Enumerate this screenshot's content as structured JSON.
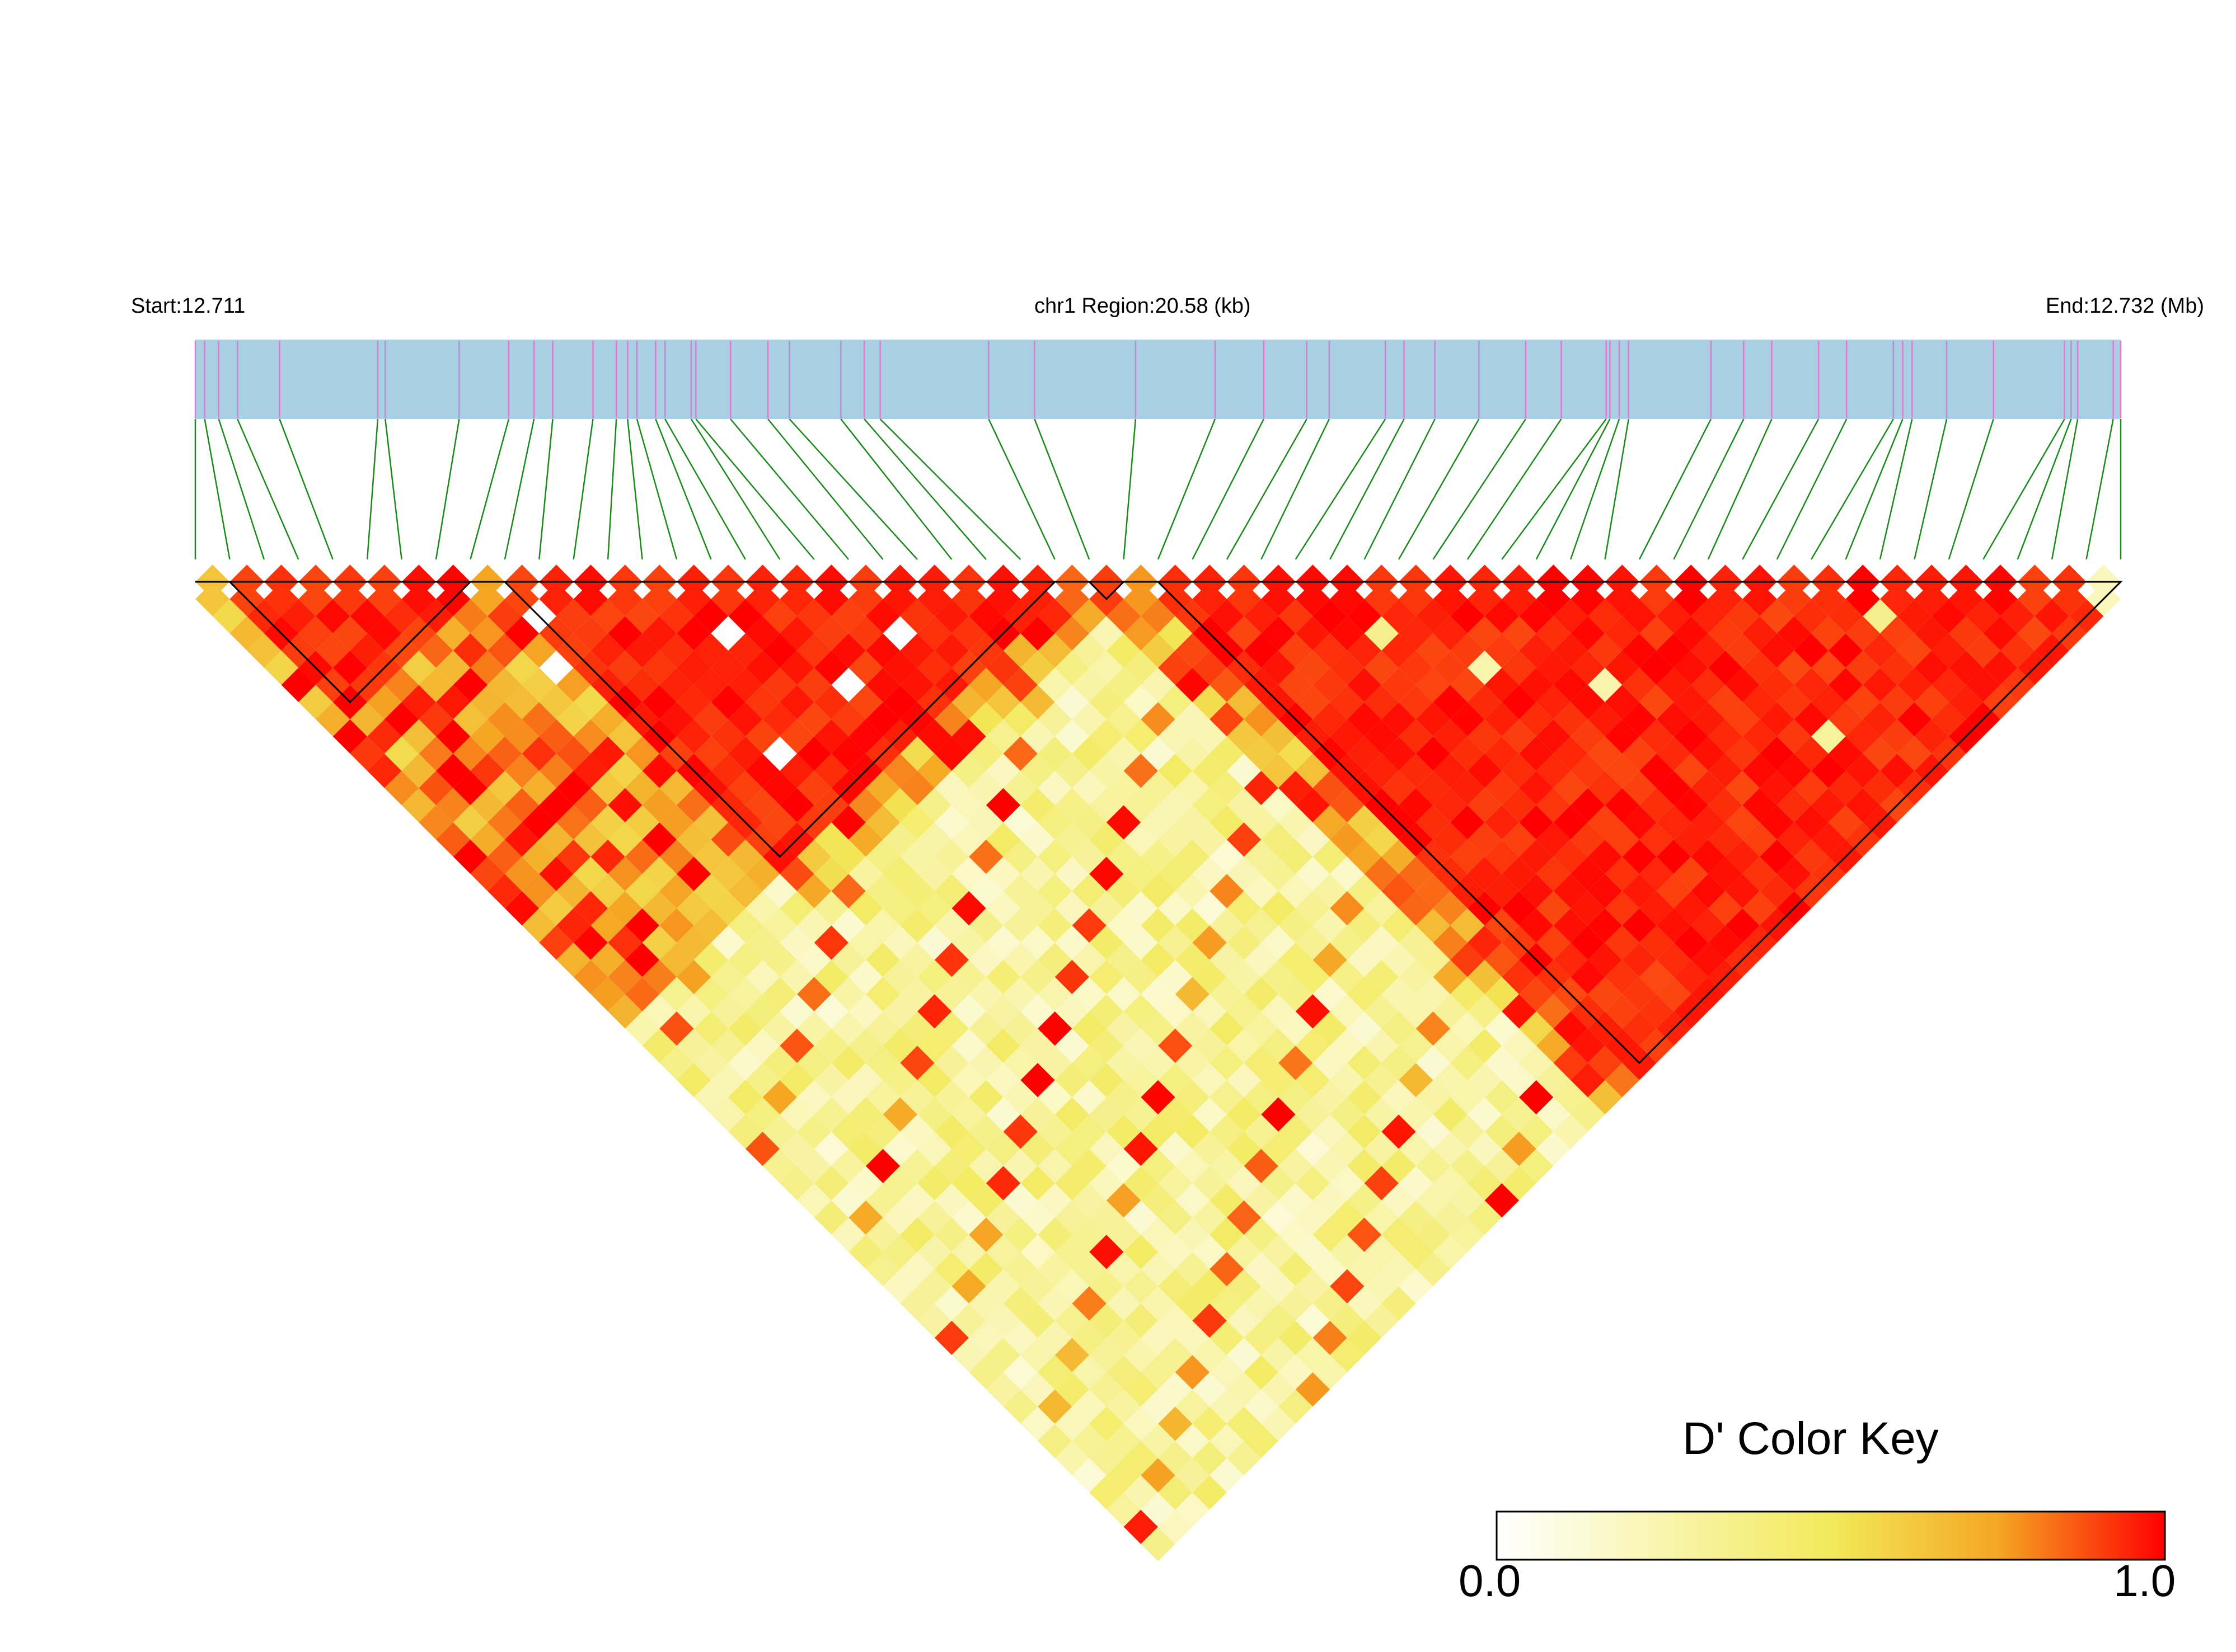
{
  "header": {
    "start_label": "Start:12.711",
    "region_label": "chr1 Region:20.58 (kb)",
    "end_label": "End:12.732 (Mb)"
  },
  "color_key": {
    "title": "D' Color Key",
    "min_label": "0.0",
    "max_label": "1.0",
    "stops": [
      "#ffffff",
      "#f2ea5a",
      "#f5a623",
      "#ff0000"
    ]
  },
  "colors": {
    "gene_bar": "#a9cfe3",
    "snp_tick": "#e07ad6",
    "connector": "#1a8a1a",
    "block_outline": "#000000"
  },
  "chart_data": {
    "type": "heatmap",
    "title": "",
    "measure": "D'",
    "region": {
      "chromosome": "chr1",
      "start_mb": 12.711,
      "end_mb": 12.732,
      "length_kb": 20.58
    },
    "snp_count": 57,
    "snp_positions_kb": [
      0.0,
      0.1,
      0.25,
      0.45,
      0.9,
      1.95,
      2.03,
      2.82,
      3.35,
      3.62,
      3.82,
      4.25,
      4.5,
      4.62,
      4.72,
      4.92,
      5.02,
      5.3,
      5.35,
      5.72,
      6.12,
      6.35,
      6.9,
      7.15,
      7.32,
      8.48,
      8.97,
      10.05,
      10.9,
      11.42,
      11.88,
      12.12,
      12.72,
      12.92,
      13.25,
      13.72,
      14.22,
      14.6,
      15.08,
      15.12,
      15.22,
      15.32,
      16.2,
      16.55,
      16.85,
      17.35,
      17.65,
      18.15,
      18.25,
      18.35,
      18.72,
      19.22,
      19.98,
      20.05,
      20.12,
      20.5,
      20.58
    ],
    "haplotype_blocks": [
      [
        0,
        1
      ],
      [
        1,
        9
      ],
      [
        9,
        26
      ],
      [
        26,
        28
      ],
      [
        28,
        57
      ]
    ],
    "value_model": {
      "within_block": 0.95,
      "between_blocks_adjacent": 0.75,
      "between_blocks_distant": 0.3
    },
    "low_cells": [
      {
        "i": 9,
        "j": 11,
        "v": 0.0
      },
      {
        "i": 14,
        "j": 17,
        "v": 0.0
      },
      {
        "i": 12,
        "j": 22,
        "v": 0.0
      },
      {
        "i": 16,
        "j": 22,
        "v": 0.0
      },
      {
        "i": 19,
        "j": 22,
        "v": 0.0
      },
      {
        "i": 8,
        "j": 13,
        "v": 0.0
      },
      {
        "i": 35,
        "j": 40,
        "v": 0.25
      },
      {
        "i": 38,
        "j": 44,
        "v": 0.25
      },
      {
        "i": 33,
        "j": 36,
        "v": 0.35
      },
      {
        "i": 43,
        "j": 52,
        "v": 0.3
      },
      {
        "i": 48,
        "j": 50,
        "v": 0.35
      },
      {
        "i": 55,
        "j": 56,
        "v": 0.2
      }
    ],
    "colorbar": {
      "min": 0.0,
      "max": 1.0
    }
  }
}
